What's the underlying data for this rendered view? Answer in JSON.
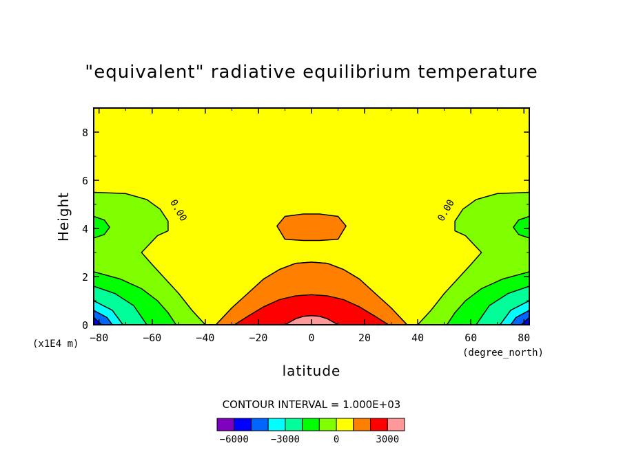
{
  "chart_data": {
    "type": "filled-contour",
    "title": "\"equivalent\" radiative equilibrium temperature",
    "xlabel": "latitude",
    "xunits": "(degree_north)",
    "ylabel": "Height",
    "yunits": "(x1E4 m)",
    "xlim": [
      -82,
      82
    ],
    "ylim": [
      0,
      9
    ],
    "xticks": [
      -80,
      -60,
      -40,
      -20,
      0,
      20,
      40,
      60,
      80
    ],
    "xtick_labels": [
      "−80",
      "−60",
      "−40",
      "−20",
      "0",
      "20",
      "40",
      "60",
      "80"
    ],
    "yticks": [
      0,
      2,
      4,
      6,
      8
    ],
    "ytick_labels": [
      "0",
      "2",
      "4",
      "6",
      "8"
    ],
    "contour_interval_text": "CONTOUR INTERVAL = 1.000E+03",
    "contour_line_labels": [
      "0.00",
      "0.00"
    ],
    "levels": [
      -6000,
      -5000,
      -4000,
      -3000,
      -2000,
      -1000,
      0,
      1000,
      2000,
      3000
    ],
    "colorbar": {
      "colors": [
        "#7f00bf",
        "#0000ff",
        "#0066ff",
        "#00ffff",
        "#00ff99",
        "#00ff00",
        "#80ff00",
        "#ffff00",
        "#ff8000",
        "#ff0000",
        "#ff9999"
      ],
      "labels": [
        "−6000",
        "−3000",
        "0",
        "3000"
      ],
      "label_values": [
        -6000,
        -3000,
        0,
        3000
      ]
    },
    "background_color": "#ffff00",
    "regions": [
      {
        "level": "0 to 1000",
        "color": "#ff8000",
        "x": [
          -36,
          -30,
          -24,
          -18,
          -12,
          -6,
          0,
          6,
          12,
          18,
          24,
          30,
          36
        ],
        "y": [
          0,
          0.7,
          1.3,
          1.9,
          2.3,
          2.55,
          2.6,
          2.55,
          2.3,
          1.9,
          1.3,
          0.7,
          0
        ]
      },
      {
        "level": "1000 to 2000",
        "color": "#ff0000",
        "x": [
          -29,
          -24,
          -18,
          -12,
          -6,
          0,
          6,
          12,
          18,
          24,
          29
        ],
        "y": [
          0,
          0.35,
          0.75,
          1.05,
          1.2,
          1.25,
          1.2,
          1.05,
          0.75,
          0.35,
          0
        ]
      },
      {
        "level": "above 2000",
        "color": "#ff9999",
        "x": [
          -10,
          -6,
          -3,
          0,
          3,
          6,
          10
        ],
        "y": [
          0,
          0.25,
          0.35,
          0.38,
          0.35,
          0.25,
          0
        ]
      },
      {
        "level": "0 to 1000 (upper cell)",
        "color": "#ff8000",
        "x": [
          -13,
          -10,
          -3,
          3,
          10,
          13,
          10,
          3,
          -3,
          -10
        ],
        "y": [
          4.1,
          4.5,
          4.6,
          4.6,
          4.5,
          4.1,
          3.55,
          3.5,
          3.5,
          3.55
        ]
      },
      {
        "level": "-1000 to 0",
        "color": "#80ff00",
        "x": [
          -82,
          -70,
          -62,
          -57,
          -54,
          -54,
          -58,
          -64,
          -60,
          -55,
          -50,
          -45,
          -40,
          -82
        ],
        "y": [
          5.5,
          5.45,
          5.2,
          4.8,
          4.3,
          3.9,
          3.7,
          3.0,
          2.5,
          1.9,
          1.3,
          0.6,
          0,
          0
        ]
      },
      {
        "level": "-2000 to -1000",
        "color": "#00ff00",
        "x": [
          -82,
          -72,
          -64,
          -58,
          -54,
          -51,
          -82
        ],
        "y": [
          2.2,
          1.9,
          1.5,
          1.0,
          0.5,
          0,
          0
        ]
      },
      {
        "level": "-2000 to -1000 (upper)",
        "color": "#00ff00",
        "x": [
          -82,
          -78,
          -76,
          -78,
          -82
        ],
        "y": [
          4.5,
          4.35,
          4.05,
          3.75,
          3.6
        ]
      },
      {
        "level": "-3000 to -2000",
        "color": "#00ff99",
        "x": [
          -82,
          -74,
          -67,
          -62,
          -82
        ],
        "y": [
          1.6,
          1.3,
          0.8,
          0,
          0
        ]
      },
      {
        "level": "-4000 to -3000",
        "color": "#00ffff",
        "x": [
          -82,
          -75,
          -71,
          -82
        ],
        "y": [
          1.0,
          0.6,
          0,
          0
        ]
      },
      {
        "level": "-5000 to -4000",
        "color": "#0066ff",
        "x": [
          -82,
          -77,
          -75,
          -82
        ],
        "y": [
          0.6,
          0.3,
          0,
          0
        ]
      },
      {
        "level": "below -5000",
        "color": "#0000ff",
        "x": [
          -82,
          -79,
          -82
        ],
        "y": [
          0.3,
          0,
          0
        ]
      }
    ]
  }
}
